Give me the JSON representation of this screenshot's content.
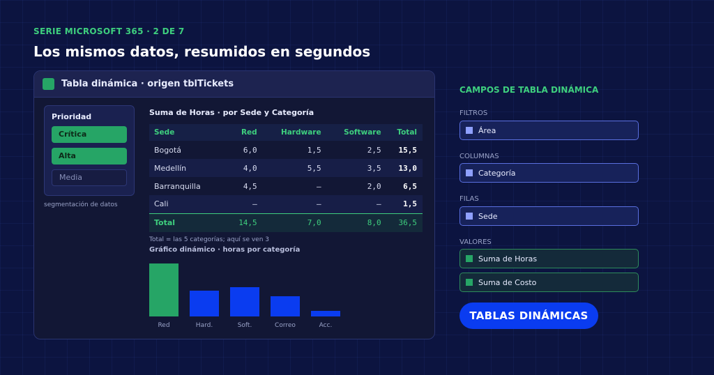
{
  "header": {
    "series": "SERIE MICROSOFT 365 · 2 DE 7",
    "headline": "Los mismos datos, resumidos en segundos"
  },
  "pivot_panel": {
    "title": "Tabla dinámica  ·  origen tblTickets",
    "slicer": {
      "title": "Prioridad",
      "items": [
        {
          "label": "Crítica",
          "selected": true
        },
        {
          "label": "Alta",
          "selected": true
        },
        {
          "label": "Media",
          "selected": false
        }
      ],
      "caption": "segmentación de datos"
    },
    "table": {
      "title": "Suma de Horas  ·  por Sede y Categoría",
      "columns": [
        "Sede",
        "Red",
        "Hardware",
        "Software",
        "Total"
      ],
      "rows": [
        [
          "Bogotá",
          "6,0",
          "1,5",
          "2,5",
          "15,5"
        ],
        [
          "Medellín",
          "4,0",
          "5,5",
          "3,5",
          "13,0"
        ],
        [
          "Barranquilla",
          "4,5",
          "—",
          "2,0",
          "6,5"
        ],
        [
          "Cali",
          "—",
          "—",
          "—",
          "1,5"
        ]
      ],
      "total_row": [
        "Total",
        "14,5",
        "7,0",
        "8,0",
        "36,5"
      ],
      "note": "Total = las 5 categorías; aquí se ven 3"
    },
    "chart": {
      "title": "Gráfico dinámico  ·  horas por categoría"
    }
  },
  "chart_data": {
    "type": "bar",
    "categories": [
      "Red",
      "Hard.",
      "Soft.",
      "Correo",
      "Acc."
    ],
    "values": [
      14.5,
      7.0,
      8.0,
      5.5,
      1.5
    ],
    "colors": [
      "#26a566",
      "#0a3cf0",
      "#0a3cf0",
      "#0a3cf0",
      "#0a3cf0"
    ],
    "ylim": [
      0,
      14.5
    ]
  },
  "fields": {
    "title": "CAMPOS DE TABLA DINÁMICA",
    "filters_label": "FILTROS",
    "filters": [
      "Área"
    ],
    "columns_label": "COLUMNAS",
    "columns": [
      "Categoría"
    ],
    "rows_label": "FILAS",
    "rows": [
      "Sede"
    ],
    "values_label": "VALORES",
    "values": [
      "Suma de Horas",
      "Suma de Costo"
    ]
  },
  "badge": "TABLAS DINÁMICAS",
  "colors": {
    "background": "#0c1440",
    "accent_green": "#3ecf7e",
    "accent_blue": "#0a3cf0"
  }
}
